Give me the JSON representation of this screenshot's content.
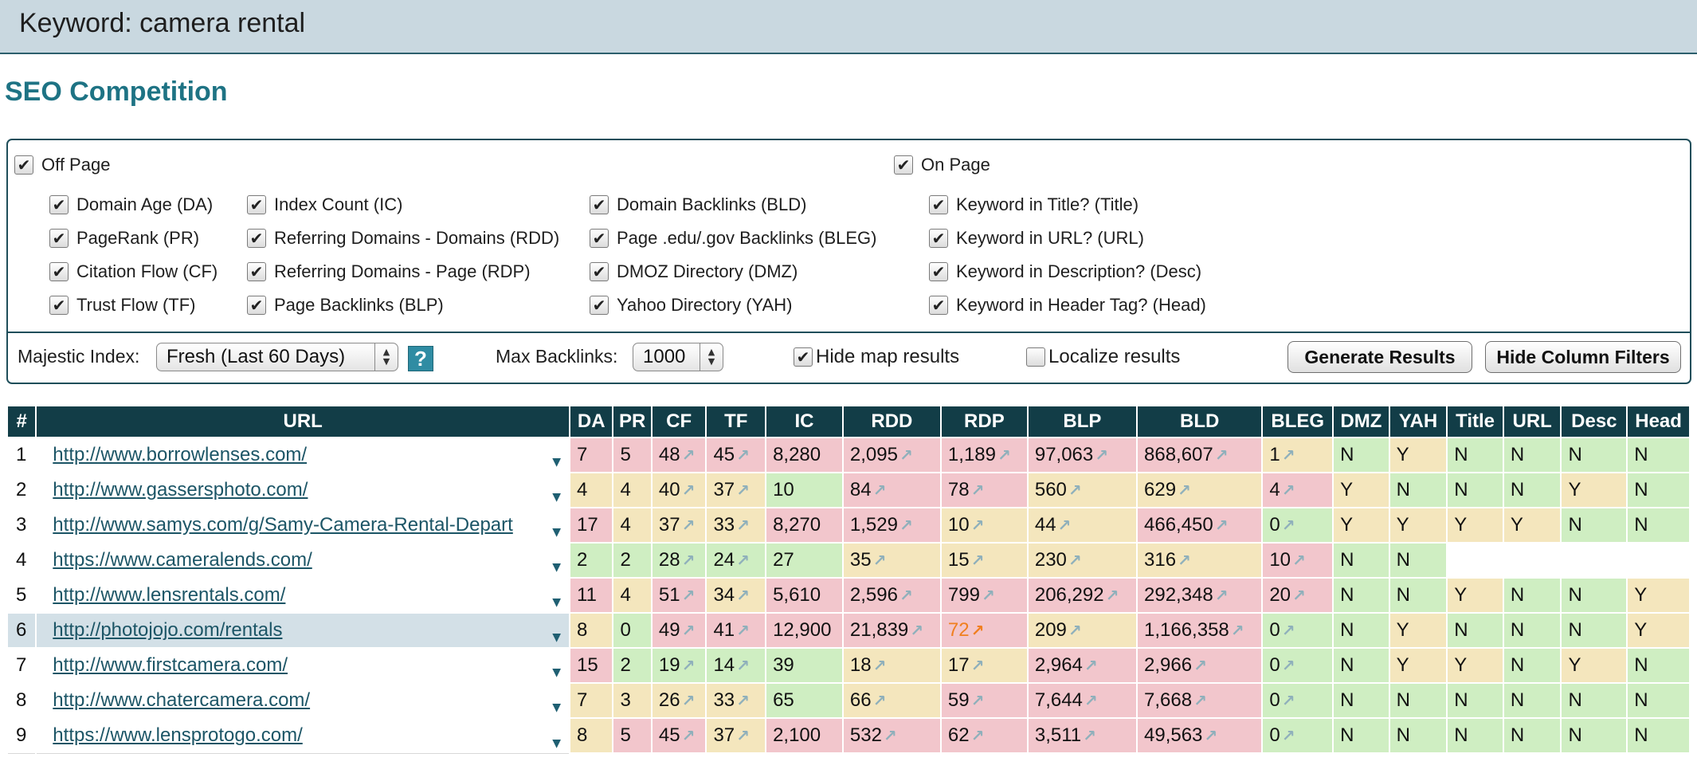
{
  "header": {
    "title": "Keyword: camera rental"
  },
  "section_title": "SEO Competition",
  "filters": {
    "off_page": {
      "label": "Off Page",
      "checked": true
    },
    "on_page": {
      "label": "On Page",
      "checked": true
    },
    "col1": [
      "Domain Age (DA)",
      "PageRank (PR)",
      "Citation Flow (CF)",
      "Trust Flow (TF)"
    ],
    "col2": [
      "Index Count (IC)",
      "Referring Domains - Domains (RDD)",
      "Referring Domains - Page (RDP)",
      "Page Backlinks (BLP)"
    ],
    "col3": [
      "Domain Backlinks (BLD)",
      "Page .edu/.gov Backlinks (BLEG)",
      "DMOZ Directory (DMZ)",
      "Yahoo Directory (YAH)"
    ],
    "col4": [
      "Keyword in Title? (Title)",
      "Keyword in URL? (URL)",
      "Keyword in Description? (Desc)",
      "Keyword in Header Tag? (Head)"
    ]
  },
  "controls": {
    "majestic_label": "Majestic Index:",
    "majestic_value": "Fresh (Last 60 Days)",
    "help_label": "?",
    "max_backlinks_label": "Max Backlinks:",
    "max_backlinks_value": "1000",
    "hide_map_label": "Hide map results",
    "localize_label": "Localize results",
    "generate_label": "Generate Results",
    "hide_filters_label": "Hide Column Filters"
  },
  "table": {
    "columns": [
      "#",
      "URL",
      "DA",
      "PR",
      "CF",
      "TF",
      "IC",
      "RDD",
      "RDP",
      "BLP",
      "BLD",
      "BLEG",
      "DMZ",
      "YAH",
      "Title",
      "URL",
      "Desc",
      "Head"
    ],
    "arrow_icon": "↗",
    "rows": [
      {
        "n": "1",
        "url": "http://www.borrowlenses.com/",
        "da": "7",
        "pr": "5",
        "cf": "48",
        "tf": "45",
        "ic": "8,280",
        "rdd": "2,095",
        "rdp": "1,189",
        "blp": "97,063",
        "bld": "868,607",
        "bleg": "1",
        "dmz": "N",
        "yah": "Y",
        "title": "N",
        "urlk": "N",
        "desc": "N",
        "head": "N"
      },
      {
        "n": "2",
        "url": "http://www.gassersphoto.com/",
        "da": "4",
        "pr": "4",
        "cf": "40",
        "tf": "37",
        "ic": "10",
        "rdd": "84",
        "rdp": "78",
        "blp": "560",
        "bld": "629",
        "bleg": "4",
        "dmz": "Y",
        "yah": "N",
        "title": "N",
        "urlk": "N",
        "desc": "Y",
        "head": "N"
      },
      {
        "n": "3",
        "url": "http://www.samys.com/g/Samy-Camera-Rental-Depart",
        "da": "17",
        "pr": "4",
        "cf": "37",
        "tf": "33",
        "ic": "8,270",
        "rdd": "1,529",
        "rdp": "10",
        "blp": "44",
        "bld": "466,450",
        "bleg": "0",
        "dmz": "Y",
        "yah": "Y",
        "title": "Y",
        "urlk": "Y",
        "desc": "N",
        "head": "N"
      },
      {
        "n": "4",
        "url": "https://www.cameralends.com/",
        "da": "2",
        "pr": "2",
        "cf": "28",
        "tf": "24",
        "ic": "27",
        "rdd": "35",
        "rdp": "15",
        "blp": "230",
        "bld": "316",
        "bleg": "10",
        "dmz": "N",
        "yah": "N",
        "title": "",
        "urlk": "",
        "desc": "",
        "head": ""
      },
      {
        "n": "5",
        "url": "http://www.lensrentals.com/",
        "da": "11",
        "pr": "4",
        "cf": "51",
        "tf": "34",
        "ic": "5,610",
        "rdd": "2,596",
        "rdp": "799",
        "blp": "206,292",
        "bld": "292,348",
        "bleg": "20",
        "dmz": "N",
        "yah": "N",
        "title": "Y",
        "urlk": "N",
        "desc": "N",
        "head": "Y"
      },
      {
        "n": "6",
        "url": "http://photojojo.com/rentals",
        "da": "8",
        "pr": "0",
        "cf": "49",
        "tf": "41",
        "ic": "12,900",
        "rdd": "21,839",
        "rdp": "72",
        "blp": "209",
        "bld": "1,166,358",
        "bleg": "0",
        "dmz": "N",
        "yah": "Y",
        "title": "N",
        "urlk": "N",
        "desc": "N",
        "head": "Y"
      },
      {
        "n": "7",
        "url": "http://www.firstcamera.com/",
        "da": "15",
        "pr": "2",
        "cf": "19",
        "tf": "14",
        "ic": "39",
        "rdd": "18",
        "rdp": "17",
        "blp": "2,964",
        "bld": "2,966",
        "bleg": "0",
        "dmz": "N",
        "yah": "Y",
        "title": "Y",
        "urlk": "N",
        "desc": "Y",
        "head": "N"
      },
      {
        "n": "8",
        "url": "http://www.chatercamera.com/",
        "da": "7",
        "pr": "3",
        "cf": "26",
        "tf": "33",
        "ic": "65",
        "rdd": "66",
        "rdp": "59",
        "blp": "7,644",
        "bld": "7,668",
        "bleg": "0",
        "dmz": "N",
        "yah": "N",
        "title": "N",
        "urlk": "N",
        "desc": "N",
        "head": "N"
      },
      {
        "n": "9",
        "url": "https://www.lensprotogo.com/",
        "da": "8",
        "pr": "5",
        "cf": "45",
        "tf": "37",
        "ic": "2,100",
        "rdd": "532",
        "rdp": "62",
        "blp": "3,511",
        "bld": "49,563",
        "bleg": "0",
        "dmz": "N",
        "yah": "N",
        "title": "N",
        "urlk": "N",
        "desc": "N",
        "head": "N"
      }
    ],
    "cell_colors": [
      {
        "da": "r",
        "pr": "r",
        "cf": "r",
        "tf": "r",
        "ic": "r",
        "rdd": "r",
        "rdp": "r",
        "blp": "r",
        "bld": "r",
        "bleg": "y",
        "dmz": "g",
        "yah": "y",
        "title": "g",
        "urlk": "g",
        "desc": "g",
        "head": "g"
      },
      {
        "da": "y",
        "pr": "y",
        "cf": "y",
        "tf": "y",
        "ic": "g",
        "rdd": "r",
        "rdp": "r",
        "blp": "y",
        "bld": "y",
        "bleg": "r",
        "dmz": "y",
        "yah": "g",
        "title": "g",
        "urlk": "g",
        "desc": "y",
        "head": "g"
      },
      {
        "da": "r",
        "pr": "y",
        "cf": "y",
        "tf": "y",
        "ic": "r",
        "rdd": "r",
        "rdp": "y",
        "blp": "y",
        "bld": "r",
        "bleg": "g",
        "dmz": "y",
        "yah": "y",
        "title": "y",
        "urlk": "y",
        "desc": "g",
        "head": "g"
      },
      {
        "da": "g",
        "pr": "g",
        "cf": "g",
        "tf": "g",
        "ic": "g",
        "rdd": "y",
        "rdp": "y",
        "blp": "y",
        "bld": "y",
        "bleg": "r",
        "dmz": "g",
        "yah": "g",
        "title": "w",
        "urlk": "w",
        "desc": "w",
        "head": "w"
      },
      {
        "da": "r",
        "pr": "y",
        "cf": "r",
        "tf": "y",
        "ic": "r",
        "rdd": "r",
        "rdp": "r",
        "blp": "r",
        "bld": "r",
        "bleg": "r",
        "dmz": "g",
        "yah": "g",
        "title": "y",
        "urlk": "g",
        "desc": "g",
        "head": "y"
      },
      {
        "da": "y",
        "pr": "g",
        "cf": "r",
        "tf": "r",
        "ic": "r",
        "rdd": "r",
        "rdp": "r",
        "blp": "y",
        "bld": "r",
        "bleg": "g",
        "dmz": "g",
        "yah": "y",
        "title": "g",
        "urlk": "g",
        "desc": "g",
        "head": "y"
      },
      {
        "da": "r",
        "pr": "g",
        "cf": "g",
        "tf": "g",
        "ic": "g",
        "rdd": "y",
        "rdp": "y",
        "blp": "r",
        "bld": "r",
        "bleg": "g",
        "dmz": "g",
        "yah": "y",
        "title": "y",
        "urlk": "g",
        "desc": "y",
        "head": "g"
      },
      {
        "da": "y",
        "pr": "y",
        "cf": "y",
        "tf": "y",
        "ic": "g",
        "rdd": "y",
        "rdp": "r",
        "blp": "r",
        "bld": "r",
        "bleg": "g",
        "dmz": "g",
        "yah": "g",
        "title": "g",
        "urlk": "g",
        "desc": "g",
        "head": "g"
      },
      {
        "da": "y",
        "pr": "r",
        "cf": "r",
        "tf": "y",
        "ic": "r",
        "rdd": "r",
        "rdp": "r",
        "blp": "r",
        "bld": "r",
        "bleg": "g",
        "dmz": "g",
        "yah": "g",
        "title": "g",
        "urlk": "g",
        "desc": "g",
        "head": "g"
      }
    ],
    "highlighted_row": 6,
    "accent_colors": {
      "header": "#123d47",
      "red": "#f2c6cc",
      "yellow": "#f4e6bd",
      "green": "#cfeec2",
      "hot": "#f07f1f"
    }
  }
}
